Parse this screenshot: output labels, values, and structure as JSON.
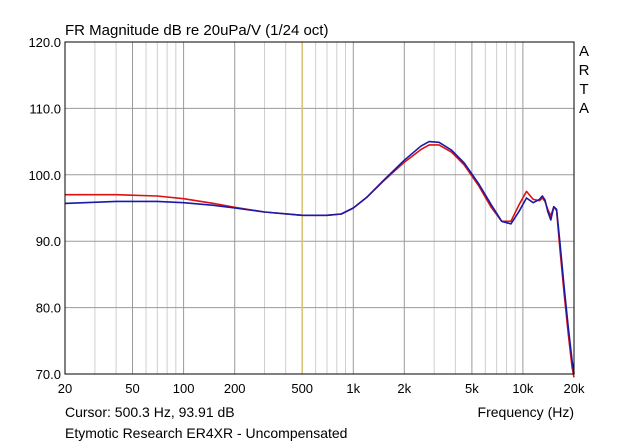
{
  "chart_data": {
    "type": "line",
    "title": "FR Magnitude dB re 20uPa/V (1/24 oct)",
    "xlabel": "Frequency (Hz)",
    "ylabel": "",
    "x_scale": "log",
    "xlim": [
      20,
      20000
    ],
    "ylim": [
      70,
      120
    ],
    "grid": true,
    "x_ticks": [
      {
        "value": 20,
        "label": "20"
      },
      {
        "value": 50,
        "label": "50"
      },
      {
        "value": 100,
        "label": "100"
      },
      {
        "value": 200,
        "label": "200"
      },
      {
        "value": 500,
        "label": "500"
      },
      {
        "value": 1000,
        "label": "1k"
      },
      {
        "value": 2000,
        "label": "2k"
      },
      {
        "value": 5000,
        "label": "5k"
      },
      {
        "value": 10000,
        "label": "10k"
      },
      {
        "value": 20000,
        "label": "20k"
      }
    ],
    "y_ticks": [
      {
        "value": 70,
        "label": "70.0"
      },
      {
        "value": 80,
        "label": "80.0"
      },
      {
        "value": 90,
        "label": "90.0"
      },
      {
        "value": 100,
        "label": "100.0"
      },
      {
        "value": 110,
        "label": "110.0"
      },
      {
        "value": 120,
        "label": "120.0"
      }
    ],
    "watermark": "ARTA",
    "cursor": {
      "frequency": 500.3,
      "label": "Cursor: 500.3 Hz, 93.91 dB",
      "color": "#d8c270"
    },
    "caption": "Etymotic Research ER4XR - Uncompensated",
    "series": [
      {
        "color": "#dd1111",
        "x": [
          20,
          40,
          70,
          100,
          150,
          200,
          300,
          500,
          700,
          850,
          1000,
          1200,
          1500,
          2000,
          2500,
          2800,
          3200,
          3800,
          4500,
          5500,
          6500,
          7500,
          8500,
          9500,
          10500,
          11500,
          12500,
          13000,
          13500,
          14000,
          14600,
          15200,
          15800,
          16500,
          17500,
          18500,
          19500,
          20000
        ],
        "y": [
          97.0,
          97.0,
          96.8,
          96.4,
          95.7,
          95.1,
          94.4,
          93.9,
          93.9,
          94.1,
          95.0,
          96.6,
          99.0,
          101.9,
          103.8,
          104.5,
          104.5,
          103.4,
          101.5,
          98.3,
          95.1,
          93.0,
          93.0,
          95.5,
          97.5,
          96.3,
          96.1,
          96.5,
          96.0,
          94.8,
          93.8,
          95.2,
          94.6,
          89.0,
          82.0,
          76.0,
          71.0,
          69.5
        ]
      },
      {
        "color": "#1a1aa8",
        "x": [
          20,
          40,
          70,
          100,
          150,
          200,
          300,
          500,
          700,
          850,
          1000,
          1200,
          1500,
          2000,
          2500,
          2800,
          3200,
          3800,
          4500,
          5500,
          6500,
          7500,
          8500,
          9500,
          10500,
          11500,
          12500,
          13000,
          13500,
          14000,
          14600,
          15200,
          15800,
          16500,
          17500,
          18500,
          19500,
          20000
        ],
        "y": [
          95.7,
          96.0,
          96.0,
          95.8,
          95.4,
          95.0,
          94.4,
          93.9,
          93.9,
          94.1,
          95.0,
          96.6,
          99.1,
          102.2,
          104.3,
          105.0,
          104.9,
          103.7,
          101.8,
          98.6,
          95.5,
          93.0,
          92.6,
          94.5,
          96.5,
          95.8,
          96.3,
          96.8,
          96.2,
          94.5,
          93.2,
          95.2,
          94.8,
          90.0,
          83.0,
          77.0,
          72.0,
          70.0
        ]
      }
    ]
  }
}
